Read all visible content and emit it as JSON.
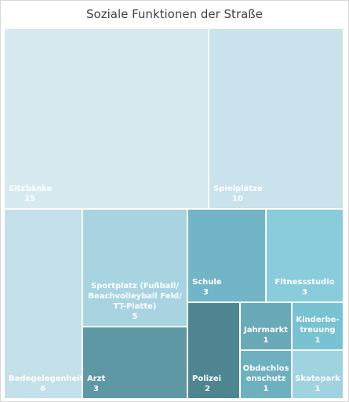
{
  "chart_data": {
    "type": "treemap",
    "title": "Soziale Funktionen der Straße",
    "items": [
      {
        "name": "Sitzbänke",
        "label_lines": [
          "Sitzbänke"
        ],
        "value": 15,
        "color": "#d8e9f0",
        "label_align": "left"
      },
      {
        "name": "Spielplätze",
        "label_lines": [
          "Spielplätze"
        ],
        "value": 10,
        "color": "#c9e2ec",
        "label_align": "left"
      },
      {
        "name": "Badegelegenheit",
        "label_lines": [
          "Badegelegenheit"
        ],
        "value": 6,
        "color": "#c4e0ea",
        "label_align": "left"
      },
      {
        "name": "Sportplatz (Fußball/ Beachvolleyball Feld/ TT-Platte)",
        "label_lines": [
          "Sportplatz (Fußball/",
          "Beachvolleyball Feld/",
          "TT-Platte)"
        ],
        "value": 5,
        "color": "#a8d4e2",
        "label_align": "center"
      },
      {
        "name": "Arzt",
        "label_lines": [
          "Arzt"
        ],
        "value": 3,
        "color": "#5e98a5",
        "label_align": "left"
      },
      {
        "name": "Schule",
        "label_lines": [
          "Schule"
        ],
        "value": 3,
        "color": "#72b5c6",
        "label_align": "left"
      },
      {
        "name": "Fitnessstudio",
        "label_lines": [
          "Fitnessstudio"
        ],
        "value": 3,
        "color": "#89ccdc",
        "label_align": "center"
      },
      {
        "name": "Polizei",
        "label_lines": [
          "Polizei"
        ],
        "value": 2,
        "color": "#4e8590",
        "label_align": "left"
      },
      {
        "name": "Jahrmarkt",
        "label_lines": [
          "Jahrmarkt"
        ],
        "value": 1,
        "color": "#6aa9b8",
        "label_align": "center"
      },
      {
        "name": "Kinderbetreuung",
        "label_lines": [
          "Kinderbe-",
          "treuung"
        ],
        "value": 1,
        "color": "#78c2d2",
        "label_align": "center"
      },
      {
        "name": "Obdachlosenschutz",
        "label_lines": [
          "Obdachlos",
          "enschutz"
        ],
        "value": 1,
        "color": "#6eb0c0",
        "label_align": "center"
      },
      {
        "name": "Skatepark",
        "label_lines": [
          "Skatepark"
        ],
        "value": 1,
        "color": "#9fd3e0",
        "label_align": "center"
      }
    ]
  }
}
